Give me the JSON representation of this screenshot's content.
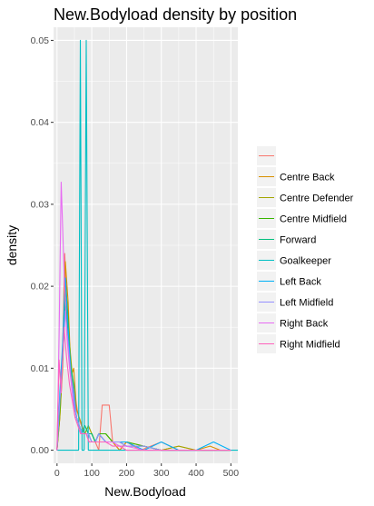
{
  "chart_data": {
    "type": "line",
    "title": "New.Bodyload density by position",
    "xlabel": "New.Bodyload",
    "ylabel": "density",
    "xlim": [
      -10,
      520
    ],
    "ylim": [
      -0.0016,
      0.0516
    ],
    "xticks": [
      0,
      100,
      200,
      300,
      400,
      500
    ],
    "yticks": [
      0.0,
      0.01,
      0.02,
      0.03,
      0.04,
      0.05
    ],
    "ytick_labels": [
      "0.00",
      "0.01",
      "0.02",
      "0.03",
      "0.04",
      "0.05"
    ],
    "grid": true,
    "legend": "right",
    "series": [
      {
        "name": "",
        "color": "#F8766D",
        "x": [
          0,
          8,
          16,
          22,
          30,
          38,
          46,
          54,
          62,
          70,
          80,
          90,
          100,
          110,
          120,
          130,
          140,
          150,
          160,
          180,
          200,
          240,
          300,
          350,
          400,
          440,
          500
        ],
        "y": [
          0.0,
          0.006,
          0.012,
          0.024,
          0.016,
          0.01,
          0.008,
          0.006,
          0.004,
          0.003,
          0.002,
          0.002,
          0.002,
          0.001,
          0.0,
          0.0055,
          0.0055,
          0.0055,
          0.001,
          0.0,
          0.001,
          0.0,
          0.001,
          0.0,
          0.0,
          0.0,
          0.0
        ]
      },
      {
        "name": "Centre Back",
        "color": "#D89000",
        "x": [
          0,
          8,
          16,
          24,
          32,
          40,
          48,
          56,
          64,
          72,
          80,
          90,
          100,
          120,
          140,
          160,
          180,
          200,
          250,
          300,
          350,
          400,
          440,
          470,
          500
        ],
        "y": [
          0.0,
          0.004,
          0.011,
          0.023,
          0.018,
          0.009,
          0.01,
          0.005,
          0.004,
          0.003,
          0.002,
          0.002,
          0.001,
          0.001,
          0.001,
          0.001,
          0.0,
          0.001,
          0.0005,
          0.0,
          0.0005,
          0.0,
          0.0005,
          0.0,
          0.0
        ]
      },
      {
        "name": "Centre Defender",
        "color": "#A3A500",
        "x": [
          0,
          8,
          16,
          24,
          32,
          40,
          48,
          56,
          64,
          72,
          80,
          90,
          100,
          110,
          120,
          140,
          160,
          180,
          200,
          250,
          300,
          350,
          400,
          450,
          500
        ],
        "y": [
          0.0,
          0.004,
          0.01,
          0.02,
          0.015,
          0.011,
          0.007,
          0.004,
          0.003,
          0.002,
          0.002,
          0.003,
          0.002,
          0.001,
          0.002,
          0.002,
          0.001,
          0.001,
          0.0005,
          0.0005,
          0.0,
          0.0005,
          0.0,
          0.0,
          0.0
        ]
      },
      {
        "name": "Centre Midfield",
        "color": "#39B600",
        "x": [
          0,
          8,
          16,
          24,
          32,
          40,
          48,
          56,
          64,
          72,
          80,
          90,
          100,
          110,
          120,
          130,
          140,
          160,
          180,
          200,
          250,
          300,
          400,
          500
        ],
        "y": [
          0.0,
          0.005,
          0.012,
          0.021,
          0.016,
          0.009,
          0.007,
          0.004,
          0.003,
          0.002,
          0.002,
          0.002,
          0.002,
          0.001,
          0.002,
          0.002,
          0.002,
          0.001,
          0.001,
          0.001,
          0.0005,
          0.0,
          0.0,
          0.0
        ]
      },
      {
        "name": "Forward",
        "color": "#00BF7D",
        "x": [
          0,
          8,
          16,
          24,
          32,
          40,
          48,
          56,
          64,
          72,
          80,
          90,
          100,
          110,
          120,
          140,
          160,
          180,
          200,
          250,
          300,
          400,
          500
        ],
        "y": [
          0.0,
          0.006,
          0.011,
          0.018,
          0.014,
          0.01,
          0.008,
          0.004,
          0.003,
          0.002,
          0.003,
          0.002,
          0.002,
          0.001,
          0.002,
          0.001,
          0.001,
          0.001,
          0.0005,
          0.0005,
          0.0,
          0.0,
          0.0
        ]
      },
      {
        "name": "Goalkeeper",
        "color": "#00BFC4",
        "x": [
          0,
          60,
          62,
          67,
          72,
          74,
          78,
          84,
          90,
          92,
          520
        ],
        "y": [
          0.0,
          0.0,
          0.0,
          0.05,
          0.0,
          0.0,
          0.0,
          0.05,
          0.0,
          0.0,
          0.0
        ]
      },
      {
        "name": "Left Back",
        "color": "#00B0F6",
        "x": [
          0,
          8,
          16,
          24,
          32,
          40,
          48,
          56,
          64,
          72,
          80,
          90,
          100,
          110,
          120,
          140,
          160,
          180,
          200,
          250,
          300,
          350,
          400,
          450,
          500
        ],
        "y": [
          0.0,
          0.007,
          0.013,
          0.021,
          0.015,
          0.009,
          0.006,
          0.004,
          0.003,
          0.002,
          0.002,
          0.002,
          0.001,
          0.001,
          0.002,
          0.001,
          0.001,
          0.001,
          0.001,
          0.0,
          0.001,
          0.0,
          0.0,
          0.001,
          0.0
        ]
      },
      {
        "name": "Left Midfield",
        "color": "#9590FF",
        "x": [
          0,
          8,
          16,
          24,
          32,
          40,
          48,
          56,
          64,
          72,
          80,
          90,
          100,
          110,
          120,
          140,
          160,
          180,
          200,
          250,
          300,
          400,
          500
        ],
        "y": [
          0.0,
          0.006,
          0.011,
          0.017,
          0.013,
          0.009,
          0.007,
          0.004,
          0.003,
          0.002,
          0.002,
          0.002,
          0.001,
          0.001,
          0.002,
          0.001,
          0.001,
          0.001,
          0.0005,
          0.0005,
          0.0,
          0.0,
          0.0
        ]
      },
      {
        "name": "Right Back",
        "color": "#E76BF3",
        "x": [
          0,
          6,
          12,
          20,
          28,
          36,
          44,
          52,
          60,
          68,
          76,
          84,
          92,
          100,
          110,
          120,
          140,
          160,
          180,
          200,
          250,
          300,
          400,
          500
        ],
        "y": [
          0.0,
          0.014,
          0.0327,
          0.022,
          0.014,
          0.01,
          0.007,
          0.004,
          0.003,
          0.002,
          0.002,
          0.002,
          0.001,
          0.001,
          0.001,
          0.001,
          0.001,
          0.001,
          0.0005,
          0.0005,
          0.0,
          0.0,
          0.0,
          0.0
        ]
      },
      {
        "name": "Right Midfield",
        "color": "#FF62BC",
        "x": [
          0,
          6,
          12,
          20,
          28,
          36,
          44,
          52,
          60,
          68,
          76,
          84,
          92,
          100,
          110,
          120,
          140,
          160,
          180,
          200,
          250,
          300,
          400,
          500
        ],
        "y": [
          0.0,
          0.011,
          0.007,
          0.015,
          0.011,
          0.008,
          0.006,
          0.004,
          0.003,
          0.002,
          0.002,
          0.002,
          0.001,
          0.001,
          0.001,
          0.001,
          0.001,
          0.0005,
          0.0005,
          0.0,
          0.0,
          0.0,
          0.0,
          0.0
        ]
      }
    ]
  }
}
